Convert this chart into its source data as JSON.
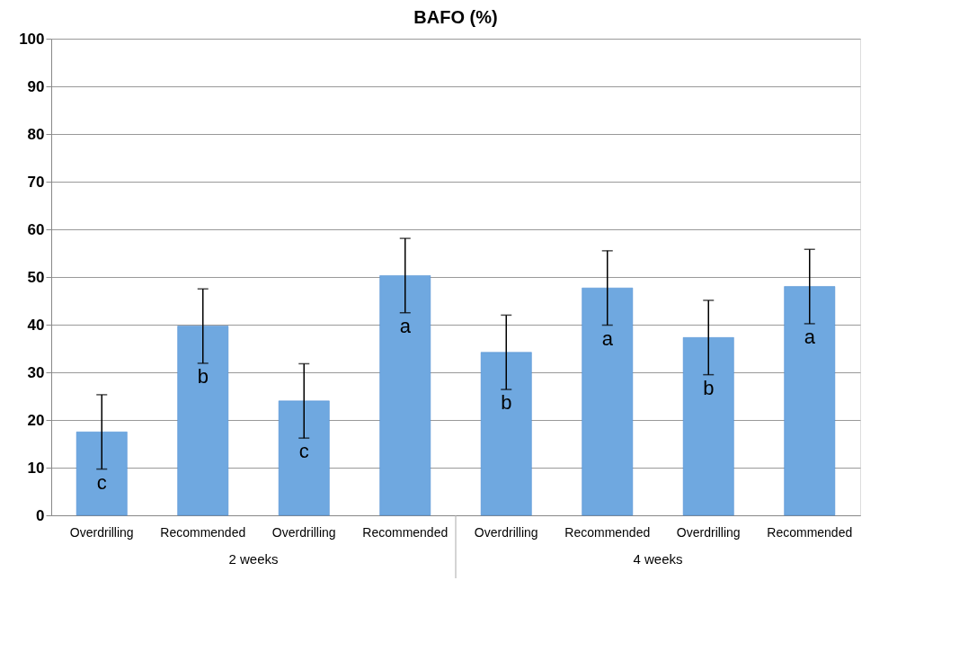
{
  "chart_data": {
    "type": "bar",
    "title": "BAFO (%)",
    "categories": [
      "Overdrilling",
      "Recommended",
      "Overdrilling",
      "Recommended",
      "Overdrilling",
      "Recommended",
      "Overdrilling",
      "Recommended"
    ],
    "values": [
      17.5,
      39.7,
      24,
      50.3,
      34.2,
      47.7,
      37.3,
      48
    ],
    "errors": [
      7.8,
      7.8,
      7.8,
      7.8,
      7.8,
      7.8,
      7.8,
      7.8
    ],
    "value_labels": [
      "c",
      "b",
      "c",
      "a",
      "b",
      "a",
      "b",
      "a"
    ],
    "color": "#6fa8e0",
    "ylim": [
      0,
      100
    ],
    "yticks": [
      0,
      10,
      20,
      30,
      40,
      50,
      60,
      70,
      80,
      90,
      100
    ],
    "grid": "y",
    "annotations": [
      "2 weeks",
      "4 weeks"
    ]
  }
}
